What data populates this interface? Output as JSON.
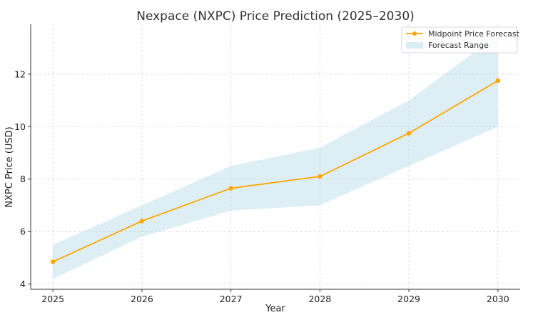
{
  "chart_data": {
    "type": "line",
    "title": "Nexpace (NXPC) Price Prediction (2025–2030)",
    "xlabel": "Year",
    "ylabel": "NXPC Price (USD)",
    "x": [
      2025,
      2026,
      2027,
      2028,
      2029,
      2030
    ],
    "x_tick_labels": [
      "2025",
      "2026",
      "2027",
      "2028",
      "2029",
      "2030"
    ],
    "y_ticks": [
      4,
      6,
      8,
      10,
      12
    ],
    "y_tick_labels": [
      "4",
      "6",
      "8",
      "10",
      "12"
    ],
    "xlim": [
      2024.75,
      2030.25
    ],
    "ylim": [
      3.8,
      13.9
    ],
    "grid": true,
    "legend_position": "top-right",
    "series": [
      {
        "name": "Midpoint Price Forecast",
        "kind": "line",
        "color": "#ffa500",
        "values": [
          4.85,
          6.4,
          7.65,
          8.1,
          9.75,
          11.75
        ]
      },
      {
        "name": "Forecast Range",
        "kind": "band",
        "color": "#add8e6",
        "lower": [
          4.2,
          5.8,
          6.8,
          7.0,
          8.5,
          10.0
        ],
        "upper": [
          5.5,
          7.0,
          8.5,
          9.2,
          11.0,
          13.5
        ]
      }
    ]
  }
}
